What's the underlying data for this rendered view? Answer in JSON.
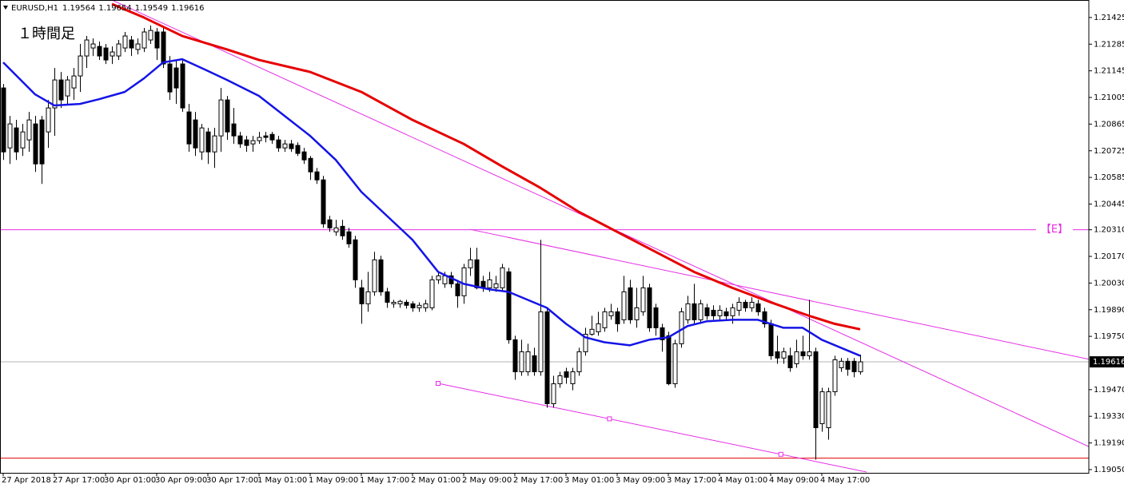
{
  "chart_data": {
    "type": "candlestick",
    "symbol": "EURUSD,H1",
    "annotation": "１時間足",
    "up_color": "#ffffff",
    "down_color": "#000000",
    "ylim": [
      1.19033,
      1.21517
    ],
    "yticks": [
      1.21425,
      1.21285,
      1.21145,
      1.21005,
      1.20865,
      1.20725,
      1.20585,
      1.20445,
      {
        "value": 1.2031,
        "label": "1.20310"
      },
      {
        "value": 1.2017,
        "label": "1.20170"
      },
      {
        "value": 1.2003,
        "label": "1.20030"
      },
      {
        "value": 1.1989,
        "label": "1.19890"
      },
      {
        "value": 1.1975,
        "label": "1.19750"
      },
      {
        "value": 1.1947,
        "label": "1.19470"
      },
      {
        "value": 1.1933,
        "label": "1.19330"
      },
      {
        "value": 1.1919,
        "label": "1.19190"
      },
      {
        "value": 1.1905,
        "label": "1.19050"
      }
    ],
    "categories": [
      "27 Apr 2018",
      null,
      null,
      null,
      null,
      null,
      null,
      null,
      "27 Apr 17:00",
      null,
      null,
      null,
      null,
      null,
      null,
      null,
      "30 Apr 01:00",
      null,
      null,
      null,
      null,
      null,
      null,
      null,
      "30 Apr 09:00",
      null,
      null,
      null,
      null,
      null,
      null,
      null,
      "30 Apr 17:00",
      null,
      null,
      null,
      null,
      null,
      null,
      null,
      "1 May 01:00",
      null,
      null,
      null,
      null,
      null,
      null,
      null,
      "1 May 09:00",
      null,
      null,
      null,
      null,
      null,
      null,
      null,
      "1 May 17:00",
      null,
      null,
      null,
      null,
      null,
      null,
      null,
      "2 May 01:00",
      null,
      null,
      null,
      null,
      null,
      null,
      null,
      "2 May 09:00",
      null,
      null,
      null,
      null,
      null,
      null,
      null,
      "2 May 17:00",
      null,
      null,
      null,
      null,
      null,
      null,
      null,
      "3 May 01:00",
      null,
      null,
      null,
      null,
      null,
      null,
      null,
      "3 May 09:00",
      null,
      null,
      null,
      null,
      null,
      null,
      null,
      "3 May 17:00",
      null,
      null,
      null,
      null,
      null,
      null,
      null,
      "4 May 01:00",
      null,
      null,
      null,
      null,
      null,
      null,
      null,
      "4 May 09:00",
      null,
      null,
      null,
      null,
      null,
      null,
      null,
      "4 May 17:00",
      null,
      null,
      null,
      null,
      null,
      null
    ],
    "open": [
      1.21055,
      1.2074,
      1.20845,
      1.2074,
      1.20782,
      1.20866,
      1.20887,
      1.20824,
      1.2095,
      1.21097,
      1.21013,
      1.21055,
      1.21118,
      1.21223,
      1.21265,
      1.21273,
      1.21265,
      1.21223,
      1.21223,
      1.21265,
      1.21307,
      1.21257,
      1.21265,
      1.21307,
      1.21349,
      1.21349,
      1.21181,
      1.2116,
      1.21181,
      1.20929,
      1.20887,
      1.20719,
      1.20824,
      1.20719,
      1.20803,
      1.20992,
      1.20866,
      1.20803,
      1.20782,
      1.20761,
      1.20778,
      1.20803,
      1.20811,
      1.20782,
      1.2074,
      1.20761,
      1.20753,
      1.20719,
      1.20685,
      1.20614,
      1.20572,
      1.20362,
      1.20299,
      1.20328,
      1.20299,
      1.20257,
      1.20005,
      1.19921,
      1.19984,
      1.20152,
      1.19984,
      1.19921,
      1.19921,
      1.19929,
      1.19921,
      1.199,
      1.199,
      1.199,
      1.20047,
      1.20026,
      1.20068,
      1.20026,
      1.19963,
      1.2011,
      1.20152,
      1.20039,
      1.20005,
      1.20005,
      1.20005,
      1.20089,
      1.19732,
      1.19564,
      1.19564,
      1.19648,
      1.19564,
      1.19879,
      1.19396,
      1.19501,
      1.19564,
      1.19501,
      1.19564,
      1.19669,
      1.19761,
      1.19774,
      1.19795,
      1.19858,
      1.19879,
      1.19837,
      1.20005,
      1.19837,
      1.19879,
      1.20005,
      1.199,
      1.19795,
      1.19753,
      1.19501,
      1.19711,
      1.19837,
      1.19921,
      1.19837,
      1.199,
      1.19887,
      1.19858,
      1.19879,
      1.19858,
      1.19887,
      1.19929,
      1.199,
      1.19921,
      1.19879,
      1.19816,
      1.19669,
      1.19636,
      1.19648,
      1.19606,
      1.19669,
      1.19648,
      1.19669,
      1.19291,
      1.1927,
      1.19459,
      1.19585,
      1.19619,
      1.19619,
      1.19564
    ],
    "high": [
      1.21076,
      1.20908,
      1.20887,
      1.20866,
      1.20929,
      1.20908,
      1.20908,
      1.20992,
      1.2116,
      1.21139,
      1.21118,
      1.2116,
      1.21286,
      1.21328,
      1.21315,
      1.21299,
      1.21286,
      1.21273,
      1.21307,
      1.21349,
      1.21328,
      1.21315,
      1.2137,
      1.21383,
      1.2137,
      1.2137,
      1.21223,
      1.21202,
      1.21202,
      1.20971,
      1.20929,
      1.20866,
      1.20845,
      1.20845,
      1.21055,
      1.21013,
      1.2095,
      1.20824,
      1.20803,
      1.20803,
      1.20824,
      1.20824,
      1.20824,
      1.20803,
      1.20782,
      1.20782,
      1.20769,
      1.2074,
      1.20698,
      1.20635,
      1.20593,
      1.20383,
      1.20362,
      1.20362,
      1.2032,
      1.20278,
      1.20047,
      1.20089,
      1.20194,
      1.20173,
      1.20005,
      1.19942,
      1.19942,
      1.19942,
      1.19934,
      1.19929,
      1.19942,
      1.20068,
      1.20089,
      1.20089,
      1.20089,
      1.20047,
      1.20131,
      1.20215,
      1.20215,
      1.20068,
      1.20089,
      1.20068,
      1.20131,
      1.2011,
      1.19753,
      1.19732,
      1.19711,
      1.1969,
      1.20257,
      1.199,
      1.19543,
      1.19564,
      1.19585,
      1.19585,
      1.1969,
      1.19795,
      1.19858,
      1.19879,
      1.199,
      1.19921,
      1.199,
      1.20068,
      1.20047,
      1.20005,
      1.20068,
      1.20026,
      1.19921,
      1.19816,
      1.19774,
      1.19732,
      1.199,
      1.19963,
      1.20026,
      1.19942,
      1.19921,
      1.19913,
      1.19913,
      1.199,
      1.19921,
      1.19955,
      1.19942,
      1.19955,
      1.19942,
      1.199,
      1.19837,
      1.19753,
      1.1969,
      1.1969,
      1.19732,
      1.19753,
      1.19942,
      1.1969,
      1.1948,
      1.1948,
      1.19648,
      1.19636,
      1.19636,
      1.19636,
      1.19654
    ],
    "low": [
      1.20677,
      1.20656,
      1.20677,
      1.20698,
      1.20719,
      1.20614,
      1.20551,
      1.2074,
      1.20803,
      1.2095,
      1.20971,
      1.20992,
      1.21034,
      1.2116,
      1.21223,
      1.21202,
      1.21181,
      1.21181,
      1.21202,
      1.21244,
      1.21223,
      1.21231,
      1.21244,
      1.21286,
      1.21202,
      1.2116,
      1.20992,
      1.20971,
      1.20929,
      1.20719,
      1.20698,
      1.20677,
      1.20656,
      1.20635,
      1.20719,
      1.20782,
      1.20761,
      1.2074,
      1.20719,
      1.20719,
      1.20761,
      1.20769,
      1.20761,
      1.20719,
      1.20719,
      1.20719,
      1.20698,
      1.20656,
      1.20572,
      1.20551,
      1.2032,
      1.20299,
      1.20278,
      1.20257,
      1.20215,
      1.20005,
      1.19816,
      1.19879,
      1.19963,
      1.19963,
      1.199,
      1.199,
      1.199,
      1.19896,
      1.19879,
      1.19879,
      1.19879,
      1.19887,
      1.20026,
      1.20005,
      1.20005,
      1.199,
      1.19921,
      1.20068,
      1.19997,
      1.19984,
      1.19984,
      1.19984,
      1.19984,
      1.19711,
      1.19522,
      1.19543,
      1.19543,
      1.19543,
      1.19543,
      1.19375,
      1.19375,
      1.1948,
      1.19501,
      1.19467,
      1.19543,
      1.19648,
      1.19753,
      1.19753,
      1.19774,
      1.19837,
      1.19774,
      1.19816,
      1.19816,
      1.19795,
      1.19858,
      1.19774,
      1.19753,
      1.19669,
      1.19493,
      1.1948,
      1.1969,
      1.19816,
      1.19816,
      1.19816,
      1.19837,
      1.19837,
      1.19837,
      1.19837,
      1.19816,
      1.19858,
      1.19879,
      1.19879,
      1.19858,
      1.19795,
      1.19627,
      1.19606,
      1.19606,
      1.19564,
      1.19585,
      1.19627,
      1.19627,
      1.19102,
      1.19249,
      1.19207,
      1.19438,
      1.19564,
      1.19543,
      1.19535,
      1.19549
    ],
    "close": [
      1.20719,
      1.20866,
      1.20719,
      1.20824,
      1.20887,
      1.20656,
      1.20656,
      1.2095,
      1.21097,
      1.20992,
      1.21097,
      1.21118,
      1.21223,
      1.21307,
      1.21286,
      1.21223,
      1.21202,
      1.21244,
      1.21286,
      1.21328,
      1.21265,
      1.21286,
      1.21349,
      1.21357,
      1.21265,
      1.21181,
      1.21034,
      1.21055,
      1.2095,
      1.20761,
      1.2074,
      1.20845,
      1.20719,
      1.20803,
      1.20992,
      1.20824,
      1.20803,
      1.20761,
      1.20753,
      1.20778,
      1.20795,
      1.20795,
      1.20782,
      1.2074,
      1.20761,
      1.20736,
      1.20711,
      1.20677,
      1.20614,
      1.20572,
      1.20341,
      1.2032,
      1.2032,
      1.20278,
      1.20236,
      1.20047,
      1.19921,
      1.19984,
      1.20152,
      1.19984,
      1.19929,
      1.19929,
      1.19934,
      1.19913,
      1.199,
      1.19913,
      1.19921,
      1.20047,
      1.20068,
      1.20068,
      1.20026,
      1.19963,
      1.2011,
      1.20152,
      1.20005,
      1.20005,
      1.20047,
      1.20026,
      1.2011,
      1.19732,
      1.19564,
      1.19669,
      1.19669,
      1.19564,
      1.19879,
      1.19396,
      1.19501,
      1.19543,
      1.19535,
      1.19564,
      1.19669,
      1.19761,
      1.19787,
      1.19816,
      1.19879,
      1.19879,
      1.19816,
      1.19984,
      1.19837,
      1.199,
      1.20005,
      1.19795,
      1.19795,
      1.19732,
      1.19501,
      1.19711,
      1.19879,
      1.19921,
      1.19837,
      1.19921,
      1.19858,
      1.19858,
      1.19887,
      1.19858,
      1.199,
      1.19929,
      1.199,
      1.19929,
      1.19879,
      1.19816,
      1.19648,
      1.19636,
      1.19669,
      1.19585,
      1.19669,
      1.19648,
      1.19669,
      1.1927,
      1.19459,
      1.19459,
      1.19627,
      1.19619,
      1.19577,
      1.19564,
      1.19616
    ],
    "moving_averages": [
      {
        "color": "#1414e6",
        "x": [
          0,
          5,
          8,
          12,
          15,
          19,
          22,
          25,
          28,
          31,
          35,
          40,
          44,
          48,
          52,
          56,
          60,
          64,
          68,
          72,
          76,
          79,
          82,
          85,
          88,
          91,
          94,
          98,
          101,
          104,
          107,
          110,
          114,
          118,
          122,
          125,
          128,
          131,
          134
        ],
        "values": [
          1.21189,
          1.21021,
          1.20963,
          1.20971,
          1.20996,
          1.21034,
          1.21105,
          1.21189,
          1.21206,
          1.2116,
          1.21097,
          1.21013,
          1.20908,
          1.20803,
          1.20677,
          1.20509,
          1.20383,
          1.20257,
          1.20089,
          1.20026,
          1.19997,
          1.19984,
          1.19942,
          1.199,
          1.19816,
          1.19745,
          1.19719,
          1.19703,
          1.19732,
          1.19745,
          1.19804,
          1.19829,
          1.19837,
          1.19837,
          1.19795,
          1.19795,
          1.19732,
          1.1969,
          1.19648
        ]
      },
      {
        "color": "#e60000",
        "x": [
          17,
          22,
          28,
          35,
          40,
          48,
          56,
          64,
          72,
          78,
          84,
          90,
          96,
          102,
          108,
          114,
          120,
          126,
          130,
          134
        ],
        "values": [
          1.21496,
          1.21425,
          1.21328,
          1.21257,
          1.21202,
          1.21139,
          1.21034,
          1.20887,
          1.20761,
          1.20643,
          1.2053,
          1.20404,
          1.20299,
          1.20194,
          1.20089,
          1.20005,
          1.19929,
          1.19858,
          1.19816,
          1.19787
        ]
      }
    ],
    "trendlines": [
      {
        "color": "#e62ee6",
        "x": [
          17,
          170
        ],
        "values": [
          1.21517,
          1.19167
        ]
      },
      {
        "color": "#e62ee6",
        "x": [
          73,
          170
        ],
        "values": [
          1.20312,
          1.19628
        ]
      },
      {
        "color": "#e62ee6",
        "x": [
          68,
          135
        ],
        "values": [
          1.19503,
          1.19037
        ]
      }
    ],
    "hlines": [
      {
        "value": 1.2031,
        "color": "#e62ee6",
        "label": "【E】"
      },
      {
        "value": 1.1911,
        "color": "#e60000"
      }
    ]
  }
}
